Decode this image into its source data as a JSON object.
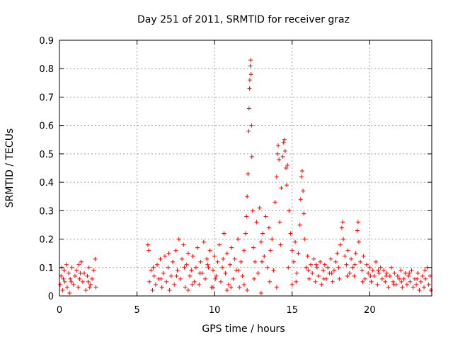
{
  "chart_data": {
    "type": "scatter",
    "title": "Day 251 of 2011, SRMTID for receiver graz",
    "xlabel": "GPS time / hours",
    "ylabel": "SRMTID / TECUs",
    "xlim": [
      0,
      24
    ],
    "ylim": [
      0,
      0.9
    ],
    "xticks": [
      0,
      5,
      10,
      15,
      20
    ],
    "yticks": [
      0,
      0.1,
      0.2,
      0.3,
      0.4,
      0.5,
      0.6,
      0.7,
      0.8,
      0.9
    ],
    "grid": true,
    "marker": "+",
    "color": "#ff0000",
    "series": [
      {
        "name": "SRMTID",
        "points": [
          [
            0.05,
            0.04
          ],
          [
            0.1,
            0.07
          ],
          [
            0.2,
            0.02
          ],
          [
            0.3,
            0.09
          ],
          [
            0.35,
            0.05
          ],
          [
            0.45,
            0.11
          ],
          [
            0.5,
            0.03
          ],
          [
            0.6,
            0.08
          ],
          [
            0.7,
            0.06
          ],
          [
            0.8,
            0.1
          ],
          [
            0.9,
            0.04
          ],
          [
            1.0,
            0.07
          ],
          [
            1.1,
            0.09
          ],
          [
            1.2,
            0.03
          ],
          [
            1.3,
            0.06
          ],
          [
            1.4,
            0.12
          ],
          [
            1.5,
            0.05
          ],
          [
            1.6,
            0.08
          ],
          [
            1.7,
            0.02
          ],
          [
            1.8,
            0.07
          ],
          [
            1.9,
            0.1
          ],
          [
            2.0,
            0.04
          ],
          [
            2.1,
            0.06
          ],
          [
            2.2,
            0.09
          ],
          [
            2.3,
            0.13
          ],
          [
            2.35,
            0.03
          ],
          [
            0.15,
            0.1
          ],
          [
            0.65,
            0.01
          ],
          [
            1.25,
            0.11
          ],
          [
            1.85,
            0.05
          ],
          [
            5.7,
            0.18
          ],
          [
            5.75,
            0.16
          ],
          [
            5.8,
            0.05
          ],
          [
            5.9,
            0.09
          ],
          [
            6.0,
            0.02
          ],
          [
            6.1,
            0.07
          ],
          [
            6.2,
            0.04
          ],
          [
            6.3,
            0.11
          ],
          [
            6.4,
            0.06
          ],
          [
            6.5,
            0.13
          ],
          [
            6.6,
            0.03
          ],
          [
            6.7,
            0.08
          ],
          [
            6.8,
            0.14
          ],
          [
            6.9,
            0.05
          ],
          [
            7.0,
            0.1
          ],
          [
            7.1,
            0.02
          ],
          [
            7.2,
            0.07
          ],
          [
            7.3,
            0.12
          ],
          [
            7.4,
            0.04
          ],
          [
            7.5,
            0.16
          ],
          [
            7.6,
            0.09
          ],
          [
            7.7,
            0.2
          ],
          [
            7.8,
            0.06
          ],
          [
            7.9,
            0.13
          ],
          [
            8.0,
            0.18
          ],
          [
            8.1,
            0.03
          ],
          [
            8.2,
            0.11
          ],
          [
            8.3,
            0.15
          ],
          [
            8.4,
            0.07
          ],
          [
            8.5,
            0.09
          ],
          [
            8.6,
            0.14
          ],
          [
            8.7,
            0.05
          ],
          [
            8.8,
            0.1
          ],
          [
            8.9,
            0.17
          ],
          [
            9.0,
            0.04
          ],
          [
            9.1,
            0.12
          ],
          [
            9.2,
            0.08
          ],
          [
            9.3,
            0.19
          ],
          [
            9.4,
            0.06
          ],
          [
            9.5,
            0.13
          ],
          [
            9.6,
            0.1
          ],
          [
            9.7,
            0.16
          ],
          [
            9.8,
            0.03
          ],
          [
            9.9,
            0.09
          ],
          [
            10.0,
            0.14
          ],
          [
            10.1,
            0.07
          ],
          [
            10.2,
            0.12
          ],
          [
            10.3,
            0.18
          ],
          [
            10.4,
            0.05
          ],
          [
            10.5,
            0.1
          ],
          [
            10.6,
            0.22
          ],
          [
            10.7,
            0.08
          ],
          [
            10.8,
            0.15
          ],
          [
            10.9,
            0.04
          ],
          [
            11.0,
            0.11
          ],
          [
            11.1,
            0.17
          ],
          [
            11.2,
            0.06
          ],
          [
            11.3,
            0.13
          ],
          [
            11.4,
            0.09
          ],
          [
            11.5,
            0.2
          ],
          [
            11.6,
            0.03
          ],
          [
            11.7,
            0.12
          ],
          [
            11.8,
            0.07
          ],
          [
            11.9,
            0.16
          ],
          [
            12.0,
            0.22
          ],
          [
            12.05,
            0.28
          ],
          [
            12.1,
            0.35
          ],
          [
            12.15,
            0.43
          ],
          [
            12.2,
            0.58
          ],
          [
            12.22,
            0.66
          ],
          [
            12.25,
            0.73
          ],
          [
            12.27,
            0.76
          ],
          [
            12.3,
            0.81
          ],
          [
            12.32,
            0.83
          ],
          [
            12.35,
            0.78
          ],
          [
            12.38,
            0.6
          ],
          [
            12.4,
            0.49
          ],
          [
            12.45,
            0.3
          ],
          [
            12.5,
            0.17
          ],
          [
            12.6,
            0.12
          ],
          [
            12.7,
            0.26
          ],
          [
            12.8,
            0.08
          ],
          [
            12.9,
            0.31
          ],
          [
            13.0,
            0.19
          ],
          [
            13.1,
            0.22
          ],
          [
            13.2,
            0.14
          ],
          [
            13.3,
            0.28
          ],
          [
            13.4,
            0.1
          ],
          [
            13.5,
            0.24
          ],
          [
            13.6,
            0.16
          ],
          [
            13.7,
            0.2
          ],
          [
            13.8,
            0.09
          ],
          [
            13.9,
            0.33
          ],
          [
            14.0,
            0.42
          ],
          [
            14.05,
            0.5
          ],
          [
            14.1,
            0.53
          ],
          [
            14.15,
            0.48
          ],
          [
            14.2,
            0.26
          ],
          [
            14.3,
            0.38
          ],
          [
            14.4,
            0.49
          ],
          [
            14.45,
            0.54
          ],
          [
            14.5,
            0.55
          ],
          [
            14.55,
            0.51
          ],
          [
            14.6,
            0.45
          ],
          [
            14.65,
            0.39
          ],
          [
            14.7,
            0.46
          ],
          [
            14.8,
            0.3
          ],
          [
            14.9,
            0.22
          ],
          [
            15.0,
            0.16
          ],
          [
            15.1,
            0.12
          ],
          [
            15.2,
            0.19
          ],
          [
            15.3,
            0.08
          ],
          [
            15.4,
            0.15
          ],
          [
            15.5,
            0.25
          ],
          [
            15.55,
            0.34
          ],
          [
            15.6,
            0.42
          ],
          [
            15.65,
            0.44
          ],
          [
            15.7,
            0.37
          ],
          [
            15.75,
            0.29
          ],
          [
            15.8,
            0.2
          ],
          [
            15.9,
            0.1
          ],
          [
            16.0,
            0.14
          ],
          [
            16.1,
            0.06
          ],
          [
            16.2,
            0.11
          ],
          [
            16.3,
            0.08
          ],
          [
            16.4,
            0.13
          ],
          [
            16.5,
            0.05
          ],
          [
            16.6,
            0.1
          ],
          [
            16.7,
            0.07
          ],
          [
            16.8,
            0.12
          ],
          [
            16.9,
            0.04
          ],
          [
            17.0,
            0.09
          ],
          [
            17.1,
            0.11
          ],
          [
            17.2,
            0.06
          ],
          [
            17.3,
            0.1
          ],
          [
            17.4,
            0.08
          ],
          [
            17.5,
            0.13
          ],
          [
            17.6,
            0.05
          ],
          [
            17.7,
            0.09
          ],
          [
            17.8,
            0.12
          ],
          [
            17.9,
            0.15
          ],
          [
            18.0,
            0.1
          ],
          [
            18.1,
            0.18
          ],
          [
            18.2,
            0.24
          ],
          [
            18.25,
            0.26
          ],
          [
            18.3,
            0.2
          ],
          [
            18.4,
            0.14
          ],
          [
            18.5,
            0.11
          ],
          [
            18.6,
            0.16
          ],
          [
            18.7,
            0.08
          ],
          [
            18.8,
            0.13
          ],
          [
            18.9,
            0.1
          ],
          [
            19.0,
            0.07
          ],
          [
            19.1,
            0.15
          ],
          [
            19.2,
            0.23
          ],
          [
            19.25,
            0.26
          ],
          [
            19.3,
            0.19
          ],
          [
            19.4,
            0.12
          ],
          [
            19.5,
            0.09
          ],
          [
            19.6,
            0.14
          ],
          [
            19.7,
            0.06
          ],
          [
            19.8,
            0.11
          ],
          [
            19.9,
            0.08
          ],
          [
            20.0,
            0.1
          ],
          [
            20.1,
            0.05
          ],
          [
            20.2,
            0.09
          ],
          [
            20.3,
            0.07
          ],
          [
            20.4,
            0.12
          ],
          [
            20.5,
            0.04
          ],
          [
            20.6,
            0.08
          ],
          [
            20.7,
            0.1
          ],
          [
            20.8,
            0.06
          ],
          [
            20.9,
            0.09
          ],
          [
            21.0,
            0.05
          ],
          [
            21.1,
            0.08
          ],
          [
            21.2,
            0.03
          ],
          [
            21.3,
            0.07
          ],
          [
            21.4,
            0.1
          ],
          [
            21.5,
            0.05
          ],
          [
            21.6,
            0.08
          ],
          [
            21.7,
            0.04
          ],
          [
            21.8,
            0.07
          ],
          [
            21.9,
            0.06
          ],
          [
            22.0,
            0.09
          ],
          [
            22.1,
            0.03
          ],
          [
            22.2,
            0.06
          ],
          [
            22.3,
            0.08
          ],
          [
            22.4,
            0.04
          ],
          [
            22.5,
            0.07
          ],
          [
            22.6,
            0.05
          ],
          [
            22.7,
            0.09
          ],
          [
            22.8,
            0.03
          ],
          [
            22.9,
            0.06
          ],
          [
            23.0,
            0.04
          ],
          [
            23.1,
            0.08
          ],
          [
            23.2,
            0.02
          ],
          [
            23.3,
            0.05
          ],
          [
            23.4,
            0.07
          ],
          [
            23.5,
            0.03
          ],
          [
            23.6,
            0.06
          ],
          [
            23.7,
            0.1
          ],
          [
            23.8,
            0.04
          ],
          [
            23.9,
            0.07
          ],
          [
            23.95,
            0.02
          ],
          [
            0.25,
            0.06
          ],
          [
            0.75,
            0.05
          ],
          [
            1.35,
            0.08
          ],
          [
            1.95,
            0.03
          ],
          [
            6.05,
            0.1
          ],
          [
            6.55,
            0.06
          ],
          [
            7.05,
            0.15
          ],
          [
            7.55,
            0.07
          ],
          [
            8.05,
            0.1
          ],
          [
            8.55,
            0.04
          ],
          [
            9.05,
            0.08
          ],
          [
            9.55,
            0.11
          ],
          [
            10.05,
            0.06
          ],
          [
            10.55,
            0.13
          ],
          [
            11.05,
            0.03
          ],
          [
            11.55,
            0.09
          ],
          [
            12.55,
            0.06
          ],
          [
            13.05,
            0.12
          ],
          [
            13.55,
            0.05
          ],
          [
            14.25,
            0.18
          ],
          [
            14.75,
            0.1
          ],
          [
            15.25,
            0.05
          ],
          [
            16.05,
            0.09
          ],
          [
            16.55,
            0.11
          ],
          [
            17.05,
            0.06
          ],
          [
            17.55,
            0.08
          ],
          [
            18.05,
            0.06
          ],
          [
            18.55,
            0.07
          ],
          [
            19.05,
            0.11
          ],
          [
            19.55,
            0.05
          ],
          [
            20.05,
            0.07
          ],
          [
            20.55,
            0.09
          ],
          [
            21.05,
            0.07
          ],
          [
            21.55,
            0.04
          ],
          [
            22.05,
            0.05
          ],
          [
            22.55,
            0.08
          ],
          [
            23.05,
            0.06
          ],
          [
            23.55,
            0.09
          ],
          [
            12.1,
            0.02
          ],
          [
            13.0,
            0.01
          ],
          [
            14.0,
            0.03
          ],
          [
            15.0,
            0.04
          ],
          [
            10.8,
            0.02
          ],
          [
            11.9,
            0.04
          ],
          [
            9.9,
            0.03
          ],
          [
            8.3,
            0.02
          ]
        ]
      }
    ]
  }
}
